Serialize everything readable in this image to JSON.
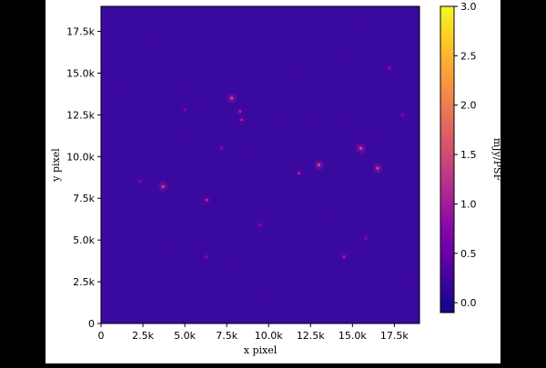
{
  "chart_data": [
    {
      "type": "heatmap",
      "title": "",
      "xlabel": "x pixel",
      "ylabel": "y pixel",
      "xlim": [
        0,
        19000
      ],
      "ylim": [
        0,
        19000
      ],
      "x_ticks": [
        0,
        2500,
        5000,
        7500,
        10000,
        12500,
        15000,
        17500
      ],
      "x_tick_labels": [
        "0",
        "2.5k",
        "5.0k",
        "7.5k",
        "10.0k",
        "12.5k",
        "15.0k",
        "17.5k"
      ],
      "y_ticks": [
        0,
        2500,
        5000,
        7500,
        10000,
        12500,
        15000,
        17500
      ],
      "y_tick_labels": [
        "0",
        "2.5k",
        "5.0k",
        "7.5k",
        "10.0k",
        "12.5k",
        "15.0k",
        "17.5k"
      ],
      "colormap": "plasma",
      "background_color": "#3a0aa0",
      "colorbar": {
        "label": "mJy/PSF",
        "range": [
          -0.1,
          3.0
        ],
        "ticks": [
          0.0,
          0.5,
          1.0,
          1.5,
          2.0,
          2.5,
          3.0
        ],
        "tick_labels": [
          "0.0",
          "0.5",
          "1.0",
          "1.5",
          "2.0",
          "2.5",
          "3.0"
        ],
        "colors": [
          "#0d0887",
          "#3b049a",
          "#6a00a8",
          "#900da4",
          "#b12a90",
          "#cc4778",
          "#e16462",
          "#f2844b",
          "#fca636",
          "#fcce25",
          "#f0f921"
        ]
      },
      "sources": [
        {
          "x": 3700,
          "y": 8200,
          "value": 1.4
        },
        {
          "x": 6300,
          "y": 7400,
          "value": 1.2
        },
        {
          "x": 7800,
          "y": 13500,
          "value": 1.5
        },
        {
          "x": 8300,
          "y": 12700,
          "value": 1.1
        },
        {
          "x": 8400,
          "y": 12200,
          "value": 1.0
        },
        {
          "x": 7200,
          "y": 10500,
          "value": 0.9
        },
        {
          "x": 5000,
          "y": 12800,
          "value": 0.7
        },
        {
          "x": 5300,
          "y": 11300,
          "value": 0.6
        },
        {
          "x": 13000,
          "y": 9500,
          "value": 1.5
        },
        {
          "x": 11800,
          "y": 9000,
          "value": 1.0
        },
        {
          "x": 15500,
          "y": 10500,
          "value": 1.6
        },
        {
          "x": 16500,
          "y": 9300,
          "value": 1.4
        },
        {
          "x": 17200,
          "y": 15300,
          "value": 0.9
        },
        {
          "x": 14500,
          "y": 4000,
          "value": 1.0
        },
        {
          "x": 15800,
          "y": 5100,
          "value": 0.8
        },
        {
          "x": 9500,
          "y": 5900,
          "value": 0.8
        },
        {
          "x": 6300,
          "y": 4000,
          "value": 0.7
        },
        {
          "x": 7600,
          "y": 3800,
          "value": 0.6
        },
        {
          "x": 12100,
          "y": 3300,
          "value": 0.6
        },
        {
          "x": 4200,
          "y": 4600,
          "value": 0.6
        },
        {
          "x": 2300,
          "y": 8500,
          "value": 0.7
        },
        {
          "x": 11100,
          "y": 11800,
          "value": 0.5
        },
        {
          "x": 12400,
          "y": 12000,
          "value": 0.5
        },
        {
          "x": 14200,
          "y": 12300,
          "value": 0.6
        },
        {
          "x": 18000,
          "y": 12500,
          "value": 0.7
        },
        {
          "x": 6100,
          "y": 13000,
          "value": 0.6
        },
        {
          "x": 5200,
          "y": 13900,
          "value": 0.6
        },
        {
          "x": 8700,
          "y": 9900,
          "value": 0.6
        },
        {
          "x": 10200,
          "y": 7600,
          "value": 0.5
        },
        {
          "x": 13500,
          "y": 6900,
          "value": 0.5
        },
        {
          "x": 16300,
          "y": 11400,
          "value": 0.6
        },
        {
          "x": 9300,
          "y": 1300,
          "value": 0.5
        },
        {
          "x": 11600,
          "y": 15100,
          "value": 0.5
        },
        {
          "x": 14100,
          "y": 15600,
          "value": 0.5
        },
        {
          "x": 15500,
          "y": 17800,
          "value": 0.5
        },
        {
          "x": 3100,
          "y": 16900,
          "value": 0.4
        },
        {
          "x": 1200,
          "y": 14200,
          "value": 0.4
        },
        {
          "x": 17900,
          "y": 2200,
          "value": 0.4
        }
      ]
    }
  ]
}
